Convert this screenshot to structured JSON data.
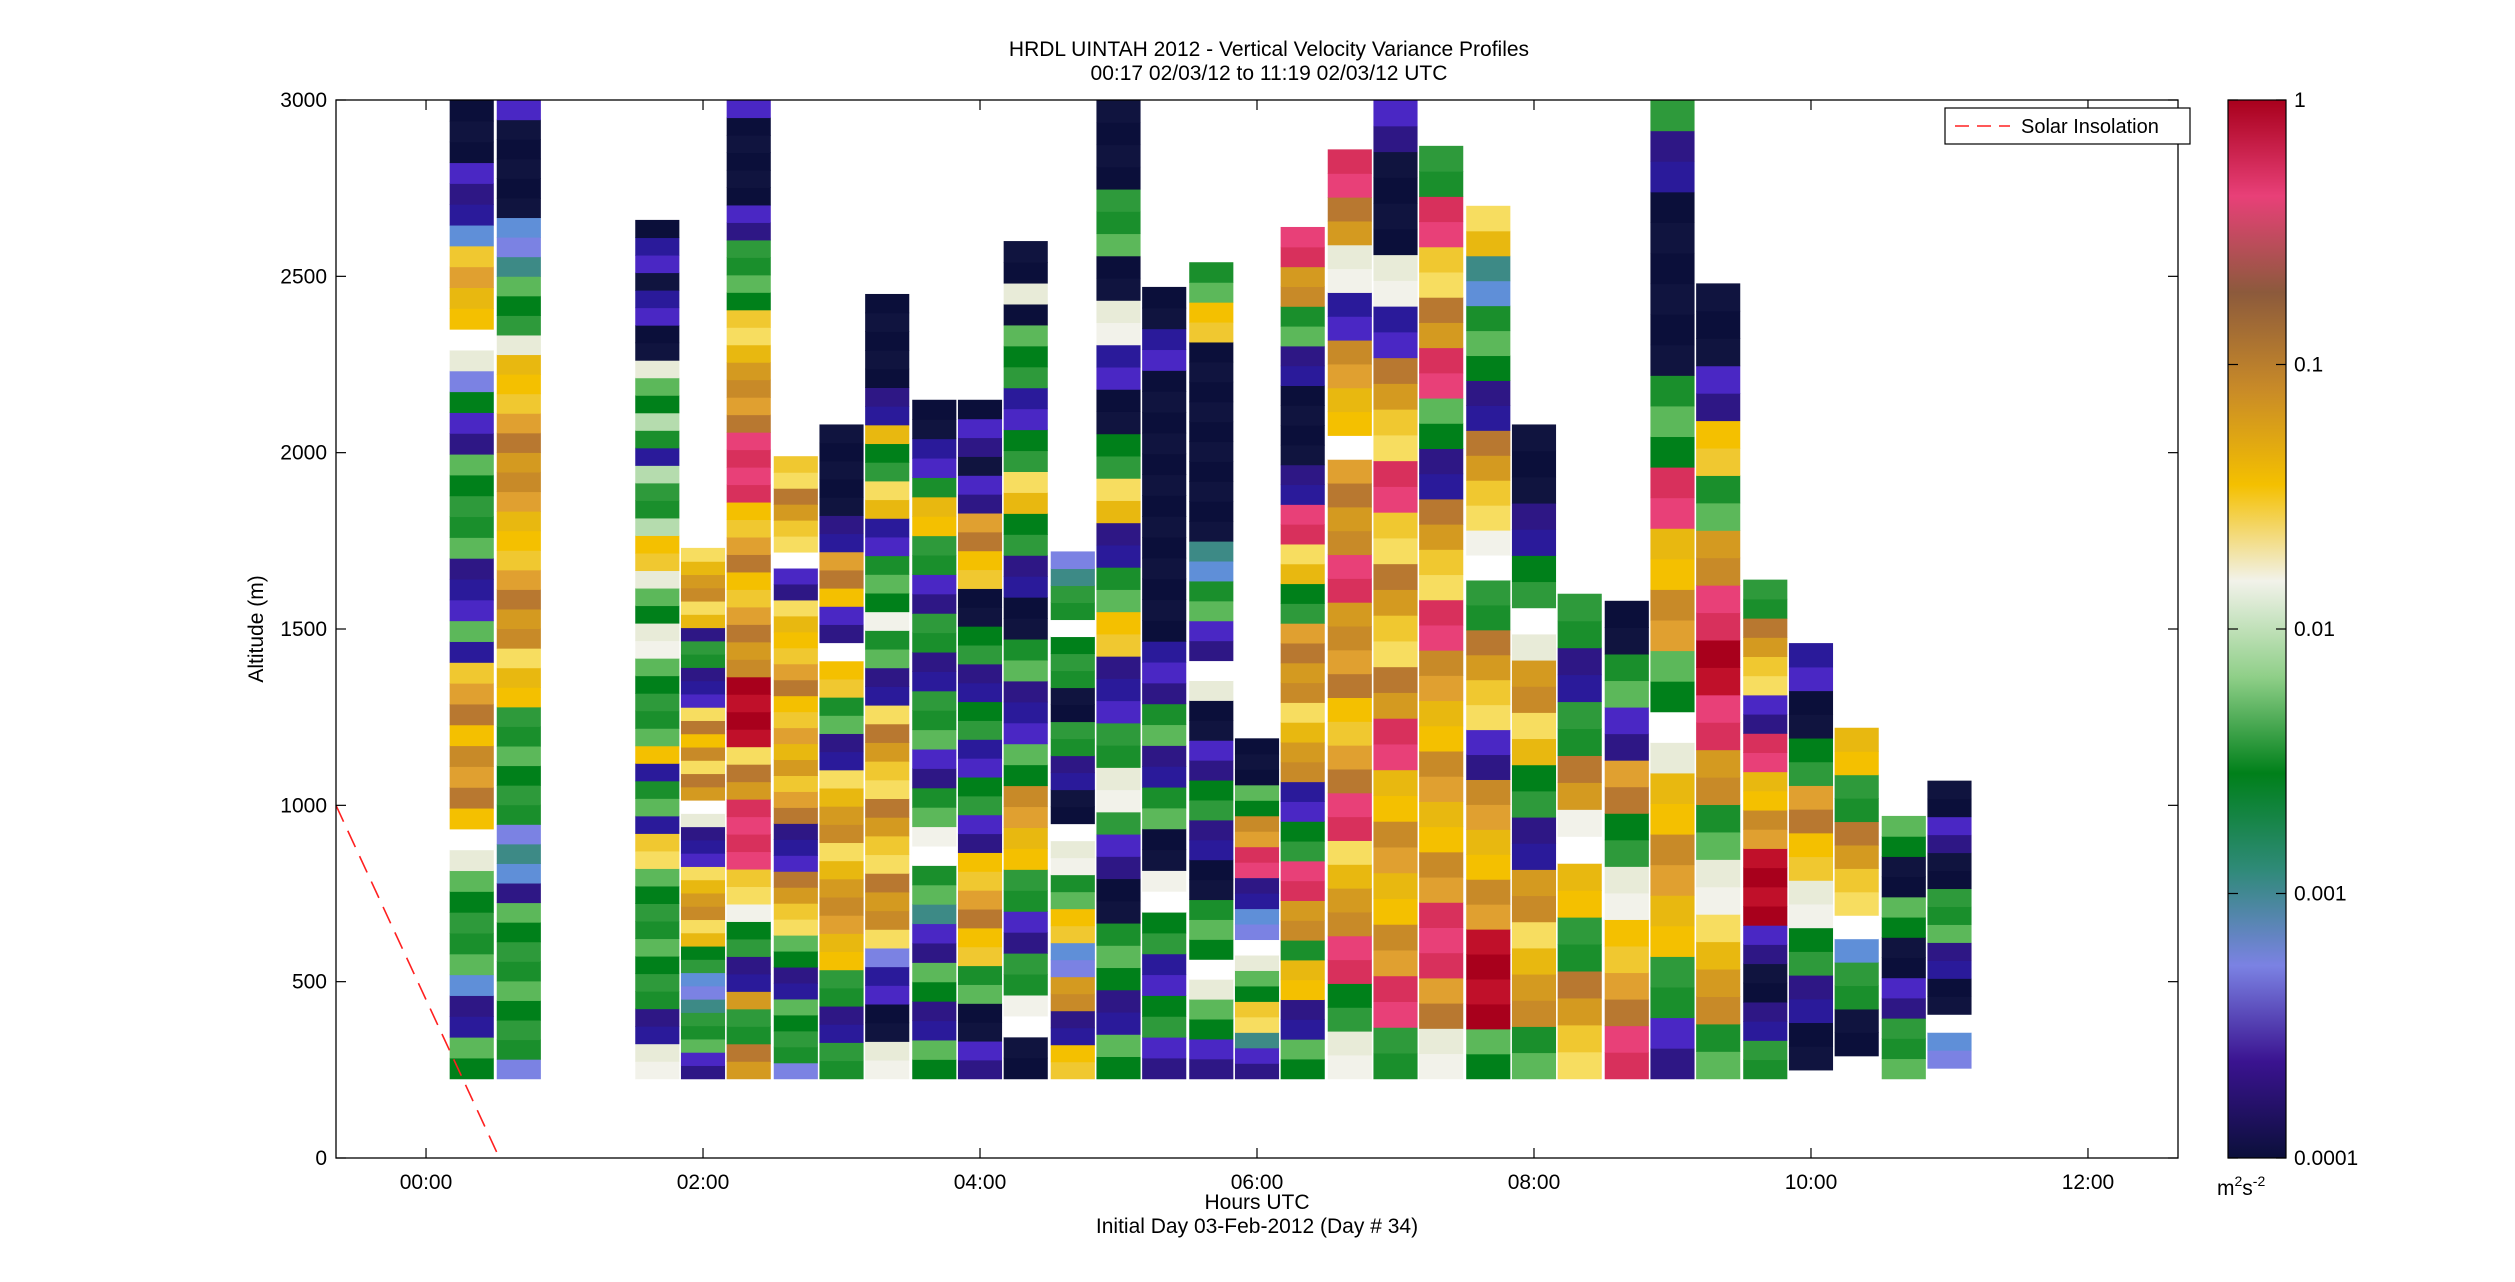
{
  "chart_data": {
    "type": "heatmap",
    "title": "HRDL UINTAH 2012 - Vertical Velocity Variance Profiles",
    "subtitle": "00:17 02/03/12 to 11:19 02/03/12  UTC",
    "xlabel": "Hours UTC",
    "xlabel2": "Initial Day 03-Feb-2012 (Day # 34)",
    "ylabel": "Altitude (m)",
    "xlim": [
      -0.65,
      12.65
    ],
    "ylim": [
      0,
      3000
    ],
    "xticks": [
      0,
      2,
      4,
      6,
      8,
      10,
      12
    ],
    "xtick_labels": [
      "00:00",
      "02:00",
      "04:00",
      "06:00",
      "08:00",
      "10:00",
      "12:00"
    ],
    "yticks": [
      0,
      500,
      1000,
      1500,
      2000,
      2500,
      3000
    ],
    "ytick_labels": [
      "0",
      "500",
      "1000",
      "1500",
      "2000",
      "2500",
      "3000"
    ],
    "legend": {
      "position": "top-right",
      "entries": [
        "Solar Insolation"
      ]
    },
    "solar_insolation": {
      "color": "#ff0000",
      "style": "dashed",
      "x": [
        -0.65,
        0.53
      ],
      "y": [
        1000,
        0
      ]
    },
    "colorbar": {
      "scale": "log",
      "min": 0.0001,
      "max": 1,
      "ticks": [
        0.0001,
        0.001,
        0.01,
        0.1,
        1
      ],
      "tick_labels": [
        "0.0001",
        "0.001",
        "0.01",
        "0.1",
        "1"
      ],
      "unit_base": "m",
      "unit_exp1": "2",
      "unit_mid": "s",
      "unit_exp2": "-2",
      "colors": [
        "#0b0f3a",
        "#3a1390",
        "#7b82e3",
        "#2f8a78",
        "#00801a",
        "#8fcf88",
        "#f2f2ea",
        "#f4c000",
        "#c88a28",
        "#8c5a3c",
        "#e84078",
        "#a8001c"
      ]
    },
    "columns": [
      {
        "x": 0.33,
        "bottom": 225,
        "top": 3000,
        "values": "ggbbcgggggwwyoooyooybgbbbgggggbbgcwwyyoycbbbkkk"
      },
      {
        "x": 0.67,
        "bottom": 225,
        "top": 3000,
        "values": "cggggggggbcccggggggyyyooooyyyoooooyyywgggccckkkkkb"
      },
      {
        "x": 1.67,
        "bottom": 225,
        "top": 2660,
        "values": "wwbbggggggggyybggbygggggwwggwyyxggxbgxggwkkbbkbbk"
      },
      {
        "x": 2.0,
        "bottom": 225,
        "top": 1730,
        "values": "bbgggcccggyyooyybbbwwooyoyoybbbggbyyooyy"
      },
      {
        "x": 2.33,
        "bottom": 225,
        "top": 3000,
        "values": "ooggobbggwyyppppooyrrrrooooyyooyyppppooooyyyggggbbkkkkkb"
      },
      {
        "x": 2.67,
        "bottom": 225,
        "top": 1990,
        "values": "cggggbbggyyoobbbooyoyoyyooyyyybbwyyooyy"
      },
      {
        "x": 3.0,
        "bottom": 225,
        "top": 2080,
        "values": "ggbbggyyoooyyooyybbggyywbbyoobbkkkkk"
      },
      {
        "x": 3.33,
        "bottom": 225,
        "top": 2450,
        "values": "wwkkbbcyoooyyooyyooybbggwgggbbyyggybbkkkkk"
      },
      {
        "x": 3.67,
        "bottom": 225,
        "top": 2150,
        "values": "ggbbggbbcggwwggbbgggbbggbbggyygbbkk"
      },
      {
        "x": 4.0,
        "bottom": 225,
        "top": 2150,
        "values": "bbkkggyyooyybbggbbggbbggkkyyoobbkbbk"
      },
      {
        "x": 4.33,
        "bottom": 225,
        "top": 2600,
        "values": "kkwwggbbggyyooggbbbggkkbbggyyggbbgggkwkk"
      },
      {
        "x": 4.67,
        "bottom": 225,
        "top": 1720,
        "values": "yybbooccyyggwwwkkbbggkkgggwggcc"
      },
      {
        "x": 5.0,
        "bottom": 225,
        "top": 3000,
        "values": "ggbbgggkkbbgwwggbbbyyggbbyyggkkbbwwkkgggkkkk"
      },
      {
        "x": 5.33,
        "bottom": 225,
        "top": 2470,
        "values": "bbggbbggwwkkggbbggbbbkkkkkkkkkkkkkbbkk"
      },
      {
        "x": 5.67,
        "bottom": 225,
        "top": 2540,
        "values": "bbggwwgggkkbbggbbkkwwbbggcckkkkkkkkkkyygg"
      },
      {
        "x": 6.0,
        "bottom": 225,
        "top": 1190,
        "values": "bbcyyggwwccbbppooggkkk"
      },
      {
        "x": 6.33,
        "bottom": 225,
        "top": 2640,
        "values": "ggbbyygooppggbbooyyooooggyyppbbkkkkbbggoopp"
      },
      {
        "x": 6.67,
        "bottom": 225,
        "top": 2860,
        "values": "wwggppooyyppooyyooooppoooowyyoobbwwoopp"
      },
      {
        "x": 7.0,
        "bottom": 225,
        "top": 3000,
        "values": "ggppooyyooyyppooyyooyyppyyoobbwwkkkkbb"
      },
      {
        "x": 7.33,
        "bottom": 225,
        "top": 2870,
        "values": "wwoopppooyyooyyooppyyoobbggppooyyppgg"
      },
      {
        "x": 7.67,
        "bottom": 225,
        "top": 2700,
        "values": "ggrrrrooyyoobbyyooggwwyyoobbgggccyy"
      },
      {
        "x": 8.0,
        "bottom": 225,
        "top": 2080,
        "values": "ggooyyoobbggyyoowwggbbkkk"
      },
      {
        "x": 8.33,
        "bottom": 225,
        "top": 1600,
        "values": "yyooggyywwooggbbgg"
      },
      {
        "x": 8.67,
        "bottom": 225,
        "top": 1580,
        "values": "ppooyywwggoobbggkk"
      },
      {
        "x": 9.0,
        "bottom": 225,
        "top": 3000,
        "values": "bbggyyooyywwggooyyppgggkkkkkkbbg"
      },
      {
        "x": 9.33,
        "bottom": 225,
        "top": 2480,
        "values": "ggooyywwggoopprrppooggyybbkkk"
      },
      {
        "x": 9.67,
        "bottom": 225,
        "top": 1640,
        "values": "ggbbkkbbrrrrooyyppbbyyoogg"
      },
      {
        "x": 10.0,
        "bottom": 250,
        "top": 1460,
        "values": "kkbbggwwyyooggkkbb"
      },
      {
        "x": 10.33,
        "bottom": 290,
        "top": 1220,
        "values": "kkggcwyyooggyy"
      },
      {
        "x": 10.67,
        "bottom": 225,
        "top": 970,
        "values": "gggbbkkggkkgg"
      },
      {
        "x": 11.0,
        "bottom": 255,
        "top": 1070,
        "values": "ccwkkbbgggkkbbkk"
      }
    ]
  }
}
